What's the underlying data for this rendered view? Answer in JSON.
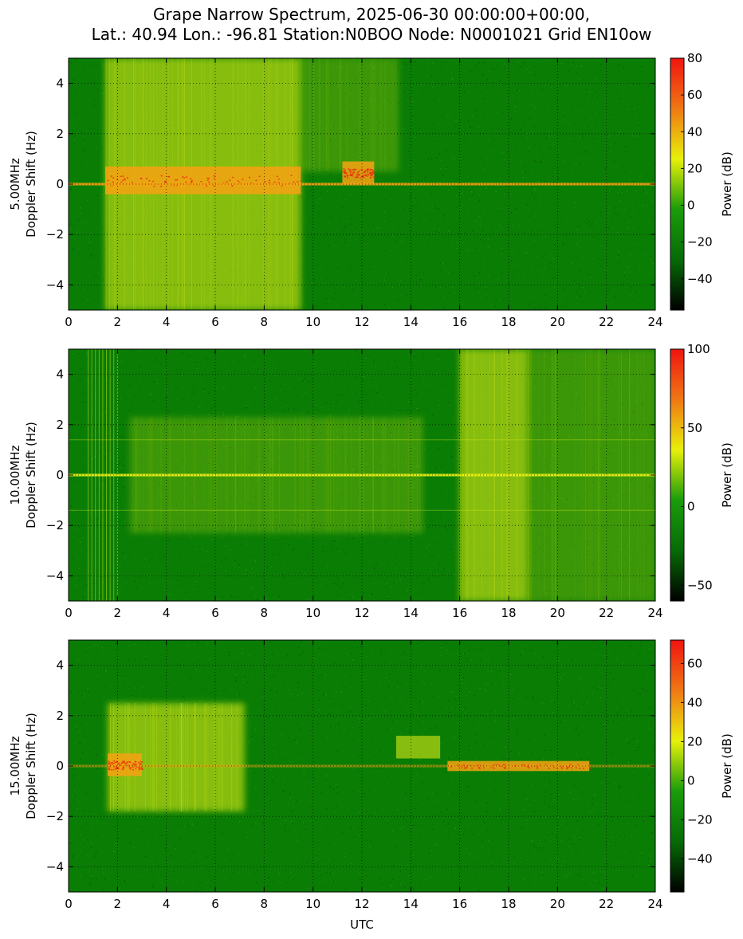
{
  "title": {
    "line1": "Grape Narrow Spectrum, 2025-06-30 00:00:00+00:00,",
    "line2": "Lat.: 40.94 Lon.: -96.81 Station:N0BOO Node: N0001021 Grid EN10ow"
  },
  "colors": {
    "bg_green": "#0a7d05",
    "yellow": "#ecf317",
    "orange": "#f7a212",
    "red": "#ef2a10",
    "colorbar_stops": [
      "#000000",
      "#066b06",
      "#1a9c0a",
      "#e8f00a",
      "#f07814",
      "#f01410"
    ]
  },
  "chart_data": [
    {
      "type": "heatmap",
      "panel_label": "5.00MHz",
      "ylabel": "Doppler Shift (Hz)",
      "xlabel": "",
      "xlim": [
        0,
        24
      ],
      "ylim": [
        -5,
        5
      ],
      "xticks": [
        "0",
        "2",
        "4",
        "6",
        "8",
        "10",
        "12",
        "14",
        "16",
        "18",
        "20",
        "22",
        "24"
      ],
      "yticks": [
        "4",
        "2",
        "0",
        "−2",
        "−4"
      ],
      "grid": true,
      "colorbar": {
        "label": "Power (dB)",
        "range": [
          -57,
          80
        ],
        "ticks": [
          "80",
          "60",
          "40",
          "20",
          "0",
          "−20",
          "−40"
        ],
        "tick_values": [
          80,
          60,
          40,
          20,
          0,
          -20,
          -40
        ]
      },
      "features": [
        {
          "kind": "diffuse",
          "x": [
            1.5,
            9.5
          ],
          "y": [
            -5,
            5
          ],
          "level": "moderate"
        },
        {
          "kind": "diffuse",
          "x": [
            9.5,
            13.5
          ],
          "y": [
            0.5,
            5
          ],
          "level": "weak"
        },
        {
          "kind": "band",
          "x": [
            1.5,
            9.5
          ],
          "y": [
            -0.4,
            0.7
          ],
          "level": "strong"
        },
        {
          "kind": "band",
          "x": [
            11.2,
            12.5
          ],
          "y": [
            0,
            0.9
          ],
          "level": "strong"
        },
        {
          "kind": "carrier",
          "x": [
            0,
            24
          ],
          "y": [
            -0.03,
            0.03
          ],
          "level": "moderate"
        }
      ]
    },
    {
      "type": "heatmap",
      "panel_label": "10.00MHz",
      "ylabel": "Doppler Shift (Hz)",
      "xlabel": "",
      "xlim": [
        0,
        24
      ],
      "ylim": [
        -5,
        5
      ],
      "xticks": [
        "0",
        "2",
        "4",
        "6",
        "8",
        "10",
        "12",
        "14",
        "16",
        "18",
        "20",
        "22",
        "24"
      ],
      "yticks": [
        "4",
        "2",
        "0",
        "−2",
        "−4"
      ],
      "grid": true,
      "colorbar": {
        "label": "Power (dB)",
        "range": [
          -60,
          100
        ],
        "ticks": [
          "100",
          "50",
          "0",
          "−50"
        ],
        "tick_values": [
          100,
          50,
          0,
          -50
        ]
      },
      "features": [
        {
          "kind": "vertical_lines",
          "x": [
            0.8,
            2.0
          ],
          "level": "moderate"
        },
        {
          "kind": "diffuse",
          "x": [
            2.5,
            14.5
          ],
          "y": [
            -2.3,
            2.3
          ],
          "level": "weak"
        },
        {
          "kind": "diffuse",
          "x": [
            16,
            18.8
          ],
          "y": [
            -5,
            5
          ],
          "level": "moderate"
        },
        {
          "kind": "diffuse",
          "x": [
            18.8,
            24
          ],
          "y": [
            -5,
            5
          ],
          "level": "weak"
        },
        {
          "kind": "hline",
          "y": [
            1.4,
            -1.4
          ],
          "level": "weak"
        },
        {
          "kind": "carrier",
          "x": [
            0,
            24
          ],
          "y": [
            -0.05,
            0.05
          ],
          "level": "strong"
        }
      ]
    },
    {
      "type": "heatmap",
      "panel_label": "15.00MHz",
      "ylabel": "Doppler Shift (Hz)",
      "xlabel": "UTC",
      "xlim": [
        0,
        24
      ],
      "ylim": [
        -5,
        5
      ],
      "xticks": [
        "0",
        "2",
        "4",
        "6",
        "8",
        "10",
        "12",
        "14",
        "16",
        "18",
        "20",
        "22",
        "24"
      ],
      "yticks": [
        "4",
        "2",
        "0",
        "−2",
        "−4"
      ],
      "grid": true,
      "colorbar": {
        "label": "Power (dB)",
        "range": [
          -57,
          72
        ],
        "ticks": [
          "60",
          "40",
          "20",
          "0",
          "−20",
          "−40"
        ],
        "tick_values": [
          60,
          40,
          20,
          0,
          -20,
          -40
        ]
      },
      "features": [
        {
          "kind": "diffuse",
          "x": [
            1.6,
            7.2
          ],
          "y": [
            -1.8,
            2.5
          ],
          "level": "moderate"
        },
        {
          "kind": "band",
          "x": [
            1.6,
            3.0
          ],
          "y": [
            -0.4,
            0.5
          ],
          "level": "strong"
        },
        {
          "kind": "band",
          "x": [
            13.4,
            15.2
          ],
          "y": [
            0.3,
            1.2
          ],
          "level": "moderate"
        },
        {
          "kind": "band",
          "x": [
            15.5,
            21.3
          ],
          "y": [
            -0.2,
            0.2
          ],
          "level": "strong"
        },
        {
          "kind": "carrier",
          "x": [
            0,
            24
          ],
          "y": [
            -0.03,
            0.03
          ],
          "level": "weak"
        }
      ]
    }
  ]
}
